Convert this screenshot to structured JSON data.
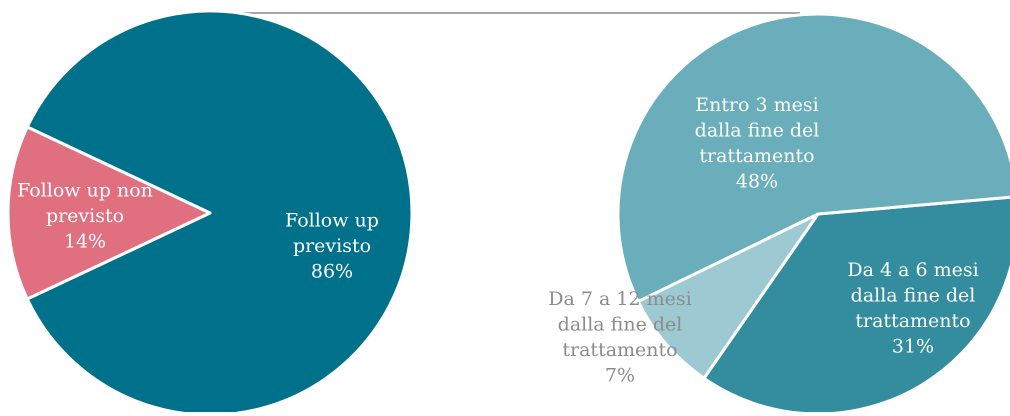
{
  "colors": {
    "connector": "#a6a6a6",
    "slice_border": "#ffffff"
  },
  "chart_data": [
    {
      "type": "pie",
      "title": "",
      "slices": [
        {
          "label_lines": [
            "Follow up",
            "previsto"
          ],
          "pct": "86%",
          "value": 86,
          "color": "#00718a",
          "label_color": "#ffffff"
        },
        {
          "label_lines": [
            "Follow up non",
            "previsto"
          ],
          "pct": "14%",
          "value": 14,
          "color": "#e06f80",
          "label_color": "#ffffff"
        }
      ]
    },
    {
      "type": "pie",
      "title": "",
      "slices": [
        {
          "label_lines": [
            "Entro 3 mesi",
            "dalla fine del",
            "trattamento"
          ],
          "pct": "48%",
          "value": 48,
          "color": "#6aaebc",
          "label_color": "#ffffff"
        },
        {
          "label_lines": [
            "Da 4 a 6 mesi",
            "dalla fine del",
            "trattamento"
          ],
          "pct": "31%",
          "value": 31,
          "color": "#338d9f",
          "label_color": "#ffffff"
        },
        {
          "label_lines": [
            "Da 7 a 12 mesi",
            "dalla fine del",
            "trattamento"
          ],
          "pct": "7%",
          "value": 7,
          "color": "#9dc9d3",
          "label_color": "#8c8c8c"
        }
      ]
    }
  ]
}
